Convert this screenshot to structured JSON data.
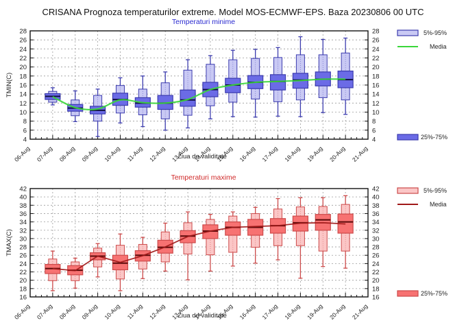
{
  "title": "CRISANA  Prognoza temperaturilor extreme.  Model MOS-ECMWF-EPS. Baza 20230806 00 UTC",
  "chart_data": [
    {
      "type": "box",
      "id": "tmin",
      "title": "Temperaturi minime",
      "xlabel": "Ziua de validitate",
      "ylabel": "TMIN(C)",
      "ylim": [
        4,
        28
      ],
      "yticks": [
        4,
        6,
        8,
        10,
        12,
        14,
        16,
        18,
        20,
        22,
        24,
        26,
        28
      ],
      "xtick_labels": [
        "06-Aug",
        "07-Aug",
        "08-Aug",
        "09-Aug",
        "10-Aug",
        "11-Aug",
        "12-Aug",
        "13-Aug",
        "14-Aug",
        "15-Aug",
        "16-Aug",
        "17-Aug",
        "18-Aug",
        "19-Aug",
        "20-Aug",
        "21-Aug"
      ],
      "grid": true,
      "colors": {
        "p25_75": "#6b6be6",
        "p5_95": "#c9c9f4",
        "border": "#3c3cae",
        "mean": "#3ad63a",
        "median": "#101040",
        "title": "#2a2ad0"
      },
      "legend": {
        "p5_95": "5%-95%",
        "mean": "Media",
        "p25_75": "25%-75%"
      },
      "categories": [
        "07-Aug",
        "08-Aug",
        "09-Aug",
        "10-Aug",
        "11-Aug",
        "12-Aug",
        "13-Aug",
        "14-Aug",
        "15-Aug",
        "16-Aug",
        "17-Aug",
        "18-Aug",
        "19-Aug",
        "20-Aug"
      ],
      "series": {
        "min": [
          11.6,
          7.9,
          4.6,
          7.6,
          6.8,
          6.0,
          6.5,
          8.5,
          9.0,
          8.9,
          9.1,
          9.0,
          9.9,
          9.5
        ],
        "p5": [
          12.2,
          9.2,
          8.0,
          9.8,
          9.4,
          8.5,
          9.3,
          11.4,
          12.2,
          12.9,
          12.3,
          12.7,
          13.2,
          12.7
        ],
        "p25": [
          12.8,
          10.2,
          9.6,
          11.5,
          11.1,
          10.6,
          11.3,
          13.4,
          14.3,
          15.2,
          14.9,
          15.3,
          15.8,
          15.4
        ],
        "median": [
          13.5,
          10.9,
          10.4,
          12.8,
          12.0,
          12.0,
          12.7,
          15.0,
          16.0,
          16.6,
          16.8,
          17.1,
          17.3,
          17.2
        ],
        "p75": [
          14.1,
          11.7,
          11.3,
          14.2,
          13.2,
          13.7,
          14.9,
          16.6,
          17.5,
          18.1,
          18.3,
          18.6,
          18.9,
          19.1
        ],
        "p95": [
          14.6,
          12.7,
          13.7,
          15.9,
          15.1,
          16.5,
          19.3,
          20.6,
          21.6,
          21.9,
          22.1,
          22.7,
          22.7,
          23.1
        ],
        "max": [
          15.4,
          14.7,
          15.1,
          17.6,
          18.0,
          18.9,
          21.6,
          22.5,
          23.7,
          23.9,
          24.3,
          26.7,
          26.1,
          26.4
        ],
        "mean": [
          13.4,
          11.0,
          10.7,
          12.7,
          12.1,
          12.0,
          12.8,
          15.0,
          16.0,
          16.6,
          16.8,
          17.0,
          17.3,
          17.3
        ]
      }
    },
    {
      "type": "box",
      "id": "tmax",
      "title": "Temperaturi maxime",
      "xlabel": "Ziua de validitate",
      "ylabel": "TMAX(C)",
      "ylim": [
        16,
        42
      ],
      "yticks": [
        16,
        18,
        20,
        22,
        24,
        26,
        28,
        30,
        32,
        34,
        36,
        38,
        40,
        42
      ],
      "xtick_labels": [
        "06-Aug",
        "07-Aug",
        "08-Aug",
        "09-Aug",
        "10-Aug",
        "11-Aug",
        "12-Aug",
        "13-Aug",
        "14-Aug",
        "15-Aug",
        "16-Aug",
        "17-Aug",
        "18-Aug",
        "19-Aug",
        "20-Aug",
        "21-Aug"
      ],
      "grid": true,
      "colors": {
        "p25_75": "#f77272",
        "p5_95": "#fbc6c6",
        "border": "#cc4a4a",
        "mean": "#a01818",
        "median": "#5a0a0a",
        "title": "#d02a2a"
      },
      "legend": {
        "p5_95": "5%-95%",
        "mean": "Media",
        "p25_75": "25%-75%"
      },
      "categories": [
        "07-Aug",
        "08-Aug",
        "09-Aug",
        "10-Aug",
        "11-Aug",
        "12-Aug",
        "13-Aug",
        "14-Aug",
        "15-Aug",
        "16-Aug",
        "17-Aug",
        "18-Aug",
        "19-Aug",
        "20-Aug"
      ],
      "series": {
        "min": [
          17.5,
          18.1,
          20.8,
          17.5,
          20.4,
          22.2,
          20.1,
          22.2,
          23.4,
          24.1,
          24.9,
          20.5,
          23.3,
          22.9
        ],
        "p5": [
          19.9,
          19.9,
          23.2,
          20.3,
          22.7,
          24.4,
          26.3,
          26.1,
          26.7,
          27.9,
          28.3,
          28.3,
          27.0,
          27.0
        ],
        "p25": [
          21.6,
          21.3,
          24.9,
          22.5,
          24.6,
          26.5,
          29.0,
          30.0,
          30.8,
          30.8,
          31.3,
          31.8,
          32.0,
          31.3
        ],
        "median": [
          22.8,
          22.4,
          25.8,
          24.1,
          26.0,
          27.9,
          30.6,
          31.8,
          32.7,
          32.7,
          33.1,
          33.8,
          34.5,
          34.0
        ],
        "p75": [
          23.8,
          23.5,
          26.6,
          26.0,
          27.1,
          29.6,
          31.9,
          33.3,
          34.0,
          34.6,
          34.8,
          35.4,
          35.8,
          35.9
        ],
        "p95": [
          25.1,
          24.4,
          27.7,
          28.4,
          28.6,
          31.6,
          33.8,
          34.6,
          35.4,
          36.0,
          37.1,
          37.6,
          37.7,
          38.2
        ],
        "max": [
          27.0,
          25.3,
          28.8,
          31.1,
          30.3,
          33.7,
          36.4,
          35.8,
          36.4,
          37.5,
          39.6,
          39.8,
          39.8,
          40.3
        ],
        "mean": [
          22.8,
          22.3,
          25.8,
          24.3,
          25.9,
          28.0,
          30.5,
          31.8,
          32.7,
          32.9,
          33.1,
          33.7,
          33.8,
          33.5
        ]
      }
    }
  ]
}
